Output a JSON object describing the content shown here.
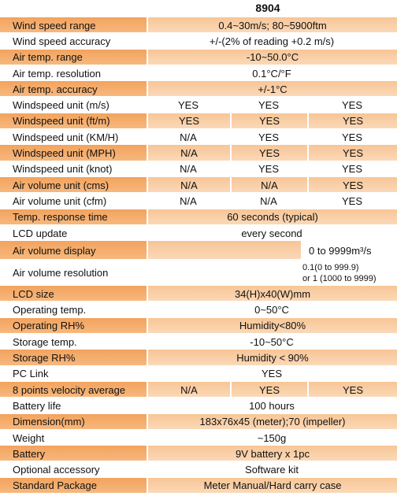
{
  "header": {
    "model": "8904"
  },
  "table": {
    "rows": [
      {
        "label": "Wind speed range",
        "cells": [
          "0.4~30m/s; 80~5900ftm"
        ]
      },
      {
        "label": "Wind speed accuracy",
        "cells": [
          "+/-(2% of reading +0.2 m/s)"
        ]
      },
      {
        "label": "Air temp. range",
        "cells": [
          "-10~50.0°C"
        ]
      },
      {
        "label": "Air temp. resolution",
        "cells": [
          "0.1°C/°F"
        ]
      },
      {
        "label": "Air temp. accuracy",
        "cells": [
          "+/-1°C"
        ]
      },
      {
        "label": "Windspeed unit (m/s)",
        "cells": [
          "YES",
          "YES",
          "YES"
        ]
      },
      {
        "label": "Windspeed unit (ft/m)",
        "cells": [
          "YES",
          "YES",
          "YES"
        ]
      },
      {
        "label": "Windspeed unit (KM/H)",
        "cells": [
          "N/A",
          "YES",
          "YES"
        ]
      },
      {
        "label": "Windspeed unit (MPH)",
        "cells": [
          "N/A",
          "YES",
          "YES"
        ]
      },
      {
        "label": "Windspeed unit (knot)",
        "cells": [
          "N/A",
          "YES",
          "YES"
        ]
      },
      {
        "label": "Air volume unit (cms)",
        "cells": [
          "N/A",
          "N/A",
          "YES"
        ]
      },
      {
        "label": "Air volume unit (cfm)",
        "cells": [
          "N/A",
          "N/A",
          "YES"
        ]
      },
      {
        "label": "Temp. response time",
        "cells": [
          "60 seconds (typical)"
        ]
      },
      {
        "label": "LCD update",
        "cells": [
          "every second"
        ]
      },
      {
        "label": "Air volume display",
        "cells": [
          "0 to 9999m³/s"
        ]
      },
      {
        "label": "Air volume resolution",
        "cells": [
          "0.1(0 to 999.9)",
          "or 1 (1000 to 9999)"
        ]
      },
      {
        "label": "LCD size",
        "cells": [
          "34(H)x40(W)mm"
        ]
      },
      {
        "label": "Operating temp.",
        "cells": [
          "0~50°C"
        ]
      },
      {
        "label": "Operating RH%",
        "cells": [
          "Humidity<80%"
        ]
      },
      {
        "label": "Storage temp.",
        "cells": [
          "-10~50°C"
        ]
      },
      {
        "label": "Storage RH%",
        "cells": [
          "Humidity < 90%"
        ]
      },
      {
        "label": "PC Link",
        "cells": [
          "YES"
        ]
      },
      {
        "label": "8 points velocity average",
        "cells": [
          "N/A",
          "YES",
          "YES"
        ]
      },
      {
        "label": "Battery life",
        "cells": [
          "100 hours"
        ]
      },
      {
        "label": "Dimension(mm)",
        "cells": [
          "183x76x45 (meter);70 (impeller)"
        ]
      },
      {
        "label": "Weight",
        "cells": [
          "~150g"
        ]
      },
      {
        "label": "Battery",
        "cells": [
          "9V battery x 1pc"
        ]
      },
      {
        "label": "Optional accessory",
        "cells": [
          "Software kit"
        ]
      },
      {
        "label": "Standard Package",
        "cells": [
          "Meter  Manual/Hard carry case"
        ]
      }
    ]
  }
}
